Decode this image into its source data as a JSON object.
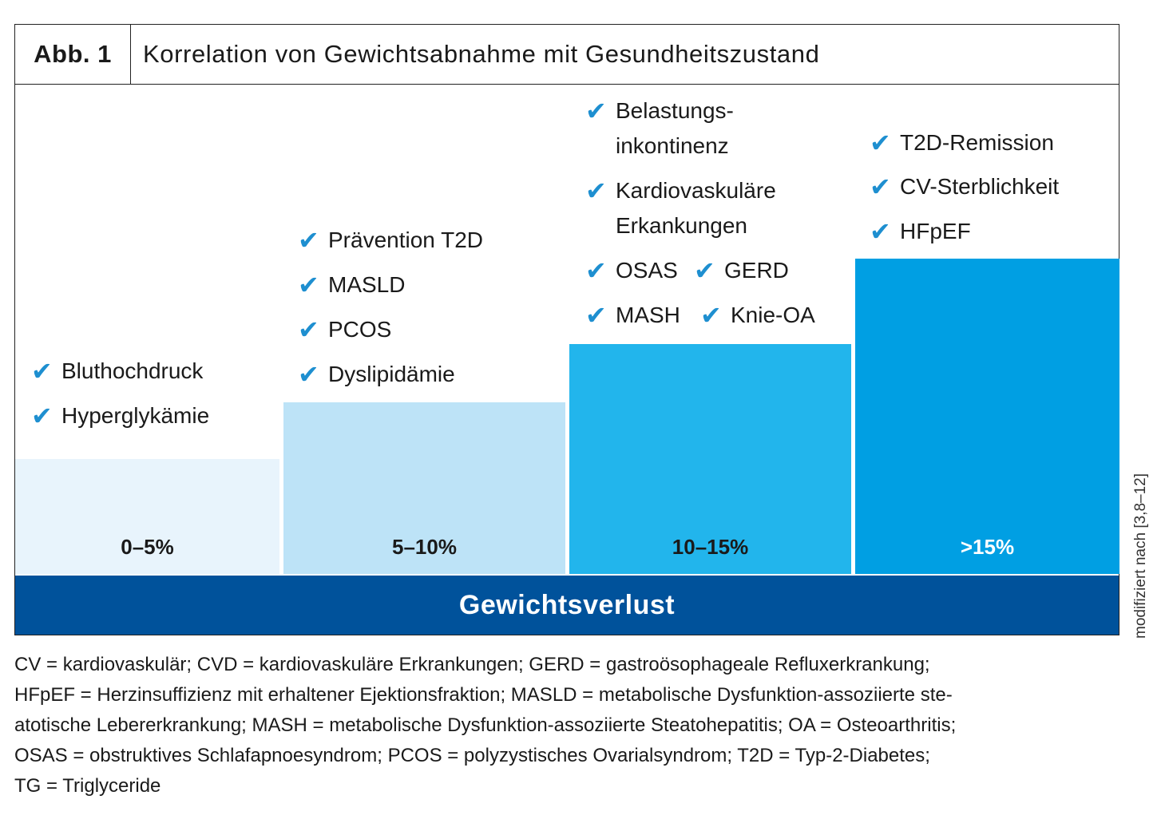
{
  "figure": {
    "label": "Abb. 1",
    "title": "Korrelation von Gewichtsabnahme mit Gesundheitszustand",
    "axis_label": "Gewichtsverlust",
    "source_note": "modifiziert nach [3,8–12]"
  },
  "colors": {
    "step1": "#e8f4fc",
    "step2": "#bde3f7",
    "step3": "#22b5ec",
    "step4": "#009fe3",
    "axis_bar": "#00529b",
    "check": "#1e8fd0"
  },
  "icons": {
    "check": "checkmark-icon"
  },
  "steps": [
    {
      "label": "0–5%",
      "items": [
        "Bluthochdruck",
        "Hyperglykämie"
      ]
    },
    {
      "label": "5–10%",
      "items": [
        "Prävention T2D",
        "MASLD",
        "PCOS",
        "Dyslipidämie"
      ]
    },
    {
      "label": "10–15%",
      "items": [
        "Belastungs-",
        "inkontinenz",
        "Kardiovaskuläre",
        "Erkankungen",
        "OSAS",
        "GERD",
        "MASH",
        "Knie-OA"
      ]
    },
    {
      "label": ">15%",
      "items": [
        "T2D-Remission",
        "CV-Sterblichkeit",
        "HFpEF"
      ]
    }
  ],
  "legend": [
    "CV = kardiovaskulär; CVD = kardiovaskuläre Erkrankungen; GERD = gastroösophageale Refluxerkrankung;",
    "HFpEF = Herzinsuffizienz mit erhaltener Ejektionsfraktion; MASLD = metabolische Dysfunktion-assoziierte ste-",
    "atotische Lebererkrankung; MASH = metabolische Dysfunktion-assoziierte Steatohepatitis; OA = Osteoarthritis;",
    "OSAS = obstruktives Schlafapnoesyndrom; PCOS = polyzystisches Ovarialsyndrom; T2D = Typ-2-Diabetes;",
    "TG = Triglyceride"
  ]
}
